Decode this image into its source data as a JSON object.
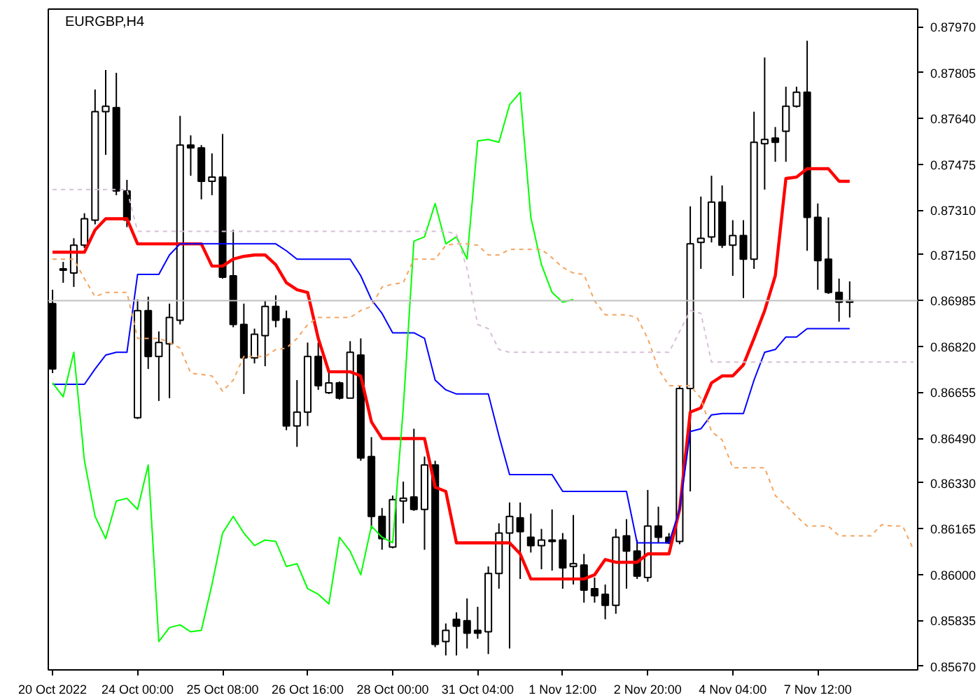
{
  "chart_data": {
    "type": "candlestick",
    "title": "EURGBP,H4",
    "categories": [
      "20 Oct 2022",
      null,
      null,
      null,
      null,
      null,
      null,
      null,
      "24 Oct 00:00",
      null,
      null,
      null,
      null,
      null,
      null,
      null,
      "25 Oct 08:00",
      null,
      null,
      null,
      null,
      null,
      null,
      null,
      "26 Oct 16:00",
      null,
      null,
      null,
      null,
      null,
      null,
      null,
      "28 Oct 00:00",
      null,
      null,
      null,
      null,
      null,
      null,
      null,
      "31 Oct 04:00",
      null,
      null,
      null,
      null,
      null,
      null,
      null,
      "1 Nov 12:00",
      null,
      null,
      null,
      null,
      null,
      null,
      null,
      "2 Nov 20:00",
      null,
      null,
      null,
      null,
      null,
      null,
      null,
      "4 Nov 04:00",
      null,
      null,
      null,
      null,
      null,
      null,
      null,
      "7 Nov 12:00",
      null,
      null,
      null,
      null,
      null,
      null,
      null,
      null,
      null
    ],
    "ohlc": [
      [
        0.86974,
        0.87024,
        0.86724,
        0.86739
      ],
      [
        0.87099,
        0.87124,
        0.87049,
        0.87094
      ],
      [
        0.87084,
        0.87209,
        0.87034,
        0.87184
      ],
      [
        0.87184,
        0.87299,
        0.87174,
        0.87279
      ],
      [
        0.87274,
        0.87744,
        0.87259,
        0.87664
      ],
      [
        0.87664,
        0.87814,
        0.87509,
        0.87684
      ],
      [
        0.87679,
        0.87804,
        0.87364,
        0.87379
      ],
      [
        0.87379,
        0.87419,
        0.87249,
        0.87274
      ],
      [
        0.86564,
        0.86989,
        0.86559,
        0.86949
      ],
      [
        0.86949,
        0.86999,
        0.86739,
        0.86784
      ],
      [
        0.86784,
        0.86874,
        0.86624,
        0.86834
      ],
      [
        0.86829,
        0.86974,
        0.86634,
        0.86924
      ],
      [
        0.86914,
        0.87649,
        0.86899,
        0.87544
      ],
      [
        0.87544,
        0.87579,
        0.87434,
        0.87534
      ],
      [
        0.87534,
        0.87544,
        0.87349,
        0.87414
      ],
      [
        0.87414,
        0.87514,
        0.87364,
        0.87429
      ],
      [
        0.87429,
        0.87584,
        0.87064,
        0.87069
      ],
      [
        0.87074,
        0.87239,
        0.86889,
        0.86899
      ],
      [
        0.86899,
        0.86974,
        0.86649,
        0.86779
      ],
      [
        0.86779,
        0.86884,
        0.86759,
        0.86864
      ],
      [
        0.86859,
        0.86984,
        0.86749,
        0.86964
      ],
      [
        0.86964,
        0.87004,
        0.86889,
        0.86914
      ],
      [
        0.86919,
        0.86949,
        0.86519,
        0.86534
      ],
      [
        0.86534,
        0.86699,
        0.86459,
        0.86584
      ],
      [
        0.86584,
        0.86834,
        0.86534,
        0.86784
      ],
      [
        0.86784,
        0.86834,
        0.86664,
        0.86679
      ],
      [
        0.86654,
        0.86729,
        0.86649,
        0.86689
      ],
      [
        0.86689,
        0.86694,
        0.86629,
        0.86634
      ],
      [
        0.86634,
        0.86839,
        0.86634,
        0.86799
      ],
      [
        0.86789,
        0.86849,
        0.86409,
        0.86419
      ],
      [
        0.86424,
        0.86494,
        0.86164,
        0.86209
      ],
      [
        0.86209,
        0.86239,
        0.86089,
        0.86129
      ],
      [
        0.86099,
        0.86284,
        0.86094,
        0.86269
      ],
      [
        0.86264,
        0.86334,
        0.86184,
        0.86274
      ],
      [
        0.86279,
        0.86524,
        0.86229,
        0.86234
      ],
      [
        0.86234,
        0.86424,
        0.86089,
        0.86394
      ],
      [
        0.86394,
        0.86409,
        0.85739,
        0.85749
      ],
      [
        0.85759,
        0.85824,
        0.85709,
        0.85799
      ],
      [
        0.85839,
        0.85864,
        0.85709,
        0.85814
      ],
      [
        0.85834,
        0.85914,
        0.85734,
        0.85789
      ],
      [
        0.85799,
        0.85884,
        0.85769,
        0.85789
      ],
      [
        0.85794,
        0.86029,
        0.85714,
        0.86004
      ],
      [
        0.86004,
        0.86184,
        0.85949,
        0.86149
      ],
      [
        0.86149,
        0.86259,
        0.85734,
        0.86209
      ],
      [
        0.86204,
        0.86259,
        0.85984,
        0.86154
      ],
      [
        0.86134,
        0.86219,
        0.86079,
        0.86104
      ],
      [
        0.86104,
        0.86164,
        0.86019,
        0.86124
      ],
      [
        0.86124,
        0.86234,
        0.86014,
        0.86119
      ],
      [
        0.86124,
        0.86149,
        0.85949,
        0.86024
      ],
      [
        0.86029,
        0.86214,
        0.85964,
        0.86039
      ],
      [
        0.86034,
        0.86074,
        0.85899,
        0.85944
      ],
      [
        0.85949,
        0.85989,
        0.85899,
        0.85924
      ],
      [
        0.85929,
        0.85964,
        0.85839,
        0.85889
      ],
      [
        0.85889,
        0.86164,
        0.85859,
        0.86134
      ],
      [
        0.86139,
        0.86199,
        0.85949,
        0.86084
      ],
      [
        0.86084,
        0.86124,
        0.85984,
        0.85994
      ],
      [
        0.85989,
        0.86304,
        0.85974,
        0.86174
      ],
      [
        0.86174,
        0.86244,
        0.86114,
        0.86134
      ],
      [
        0.86134,
        0.86149,
        0.86109,
        0.86114
      ],
      [
        0.86119,
        0.86679,
        0.86109,
        0.86669
      ],
      [
        0.86669,
        0.87324,
        0.86299,
        0.87189
      ],
      [
        0.87194,
        0.87359,
        0.87099,
        0.87209
      ],
      [
        0.87214,
        0.87434,
        0.87194,
        0.87339
      ],
      [
        0.87339,
        0.87399,
        0.87174,
        0.87184
      ],
      [
        0.87184,
        0.87274,
        0.87074,
        0.87219
      ],
      [
        0.87219,
        0.87274,
        0.86994,
        0.87134
      ],
      [
        0.87134,
        0.87664,
        0.87099,
        0.87554
      ],
      [
        0.87549,
        0.87859,
        0.87384,
        0.87564
      ],
      [
        0.87569,
        0.87609,
        0.87484,
        0.87554
      ],
      [
        0.87594,
        0.87754,
        0.87484,
        0.87684
      ],
      [
        0.87684,
        0.87754,
        0.87679,
        0.87734
      ],
      [
        0.87734,
        0.87919,
        0.87164,
        0.87284
      ],
      [
        0.87284,
        0.87334,
        0.87024,
        0.87129
      ],
      [
        0.87134,
        0.87284,
        0.87009,
        0.87014
      ],
      [
        0.87014,
        0.87064,
        0.86909,
        0.86979
      ],
      [
        0.86979,
        0.87054,
        0.86924,
        0.86985
      ],
      null,
      null,
      null,
      null,
      null,
      null
    ],
    "series": [
      {
        "type": "line",
        "color": "#ff0000",
        "values": [
          0.87159,
          0.87159,
          0.87159,
          0.87159,
          0.87239,
          0.87279,
          0.87279,
          0.87279,
          0.87189,
          0.87189,
          0.87189,
          0.87189,
          0.87189,
          0.87189,
          0.87189,
          0.87109,
          0.87109,
          0.87134,
          0.87144,
          0.87149,
          0.87149,
          0.87114,
          0.87049,
          0.87024,
          0.87014,
          0.86849,
          0.86729,
          0.86729,
          0.86729,
          0.86714,
          0.86549,
          0.86489,
          0.86489,
          0.86489,
          0.86489,
          0.86489,
          0.86314,
          0.86299,
          0.86114,
          0.86114,
          0.86114,
          0.86114,
          0.86114,
          0.86114,
          0.86074,
          0.85984,
          0.85984,
          0.85984,
          0.85984,
          0.85984,
          0.85984,
          0.85999,
          0.86054,
          0.86044,
          0.86044,
          0.86044,
          0.86074,
          0.86074,
          0.86074,
          0.86234,
          0.86584,
          0.86599,
          0.86689,
          0.86714,
          0.86714,
          0.86754,
          0.86849,
          0.86949,
          0.87074,
          0.87424,
          0.87429,
          0.87459,
          0.87459,
          0.87459,
          0.87414,
          0.87414,
          null,
          null,
          null,
          null,
          null,
          null
        ]
      },
      {
        "type": "line",
        "color": "#0000ff",
        "values": [
          0.86684,
          0.86684,
          0.86684,
          0.86684,
          0.86739,
          0.86789,
          0.86799,
          0.86799,
          0.87079,
          0.87079,
          0.87079,
          0.87149,
          0.87189,
          0.87189,
          0.87189,
          0.87189,
          0.87189,
          0.87189,
          0.87189,
          0.87189,
          0.87189,
          0.87189,
          0.87164,
          0.87134,
          0.87134,
          0.87134,
          0.87134,
          0.87134,
          0.87134,
          0.87074,
          0.86989,
          0.86939,
          0.86869,
          0.86869,
          0.86869,
          0.86849,
          0.86699,
          0.86664,
          0.86649,
          0.86649,
          0.86649,
          0.86649,
          0.86499,
          0.86359,
          0.86359,
          0.86359,
          0.86359,
          0.86359,
          0.86299,
          0.86299,
          0.86299,
          0.86299,
          0.86299,
          0.86299,
          0.86299,
          0.86114,
          0.86114,
          0.86114,
          0.86114,
          0.86234,
          0.86514,
          0.86524,
          0.86574,
          0.86579,
          0.86579,
          0.86579,
          0.86699,
          0.86799,
          0.86809,
          0.86854,
          0.86854,
          0.86884,
          0.86884,
          0.86884,
          0.86884,
          0.86884,
          null,
          null,
          null,
          null,
          null,
          null
        ]
      },
      {
        "type": "line",
        "color": "#00ff00",
        "values": [
          0.86689,
          0.86639,
          0.86799,
          0.86409,
          0.86209,
          0.86129,
          0.86264,
          0.86274,
          0.86234,
          0.86394,
          0.85759,
          0.85809,
          0.85819,
          0.85794,
          0.85799,
          0.85964,
          0.86149,
          0.86209,
          0.86149,
          0.86104,
          0.86124,
          0.86119,
          0.86029,
          0.86039,
          0.85949,
          0.85929,
          0.85894,
          0.86134,
          0.86084,
          0.85999,
          0.86174,
          0.86134,
          0.86114,
          0.86599,
          0.87199,
          0.87214,
          0.87334,
          0.87189,
          0.87214,
          0.87134,
          0.87559,
          0.87564,
          0.87554,
          0.87689,
          0.87734,
          0.87284,
          0.87114,
          0.87014,
          0.86979,
          0.86989,
          null,
          null,
          null,
          null,
          null,
          null,
          null,
          null,
          null,
          null,
          null,
          null,
          null,
          null,
          null,
          null,
          null,
          null,
          null,
          null,
          null,
          null,
          null,
          null,
          null,
          null,
          null,
          null,
          null,
          null,
          null,
          null
        ]
      },
      {
        "type": "line",
        "color": "#f4a460",
        "line_style": "dashed",
        "values": [
          0.87134,
          0.87134,
          0.87134,
          0.87064,
          0.86999,
          0.87014,
          0.87014,
          0.87014,
          0.86849,
          0.86849,
          0.86849,
          0.86834,
          0.86814,
          0.86724,
          0.86719,
          0.86714,
          0.86659,
          0.86699,
          0.86784,
          0.86784,
          0.86784,
          0.86809,
          0.86814,
          0.86849,
          0.86899,
          0.86924,
          0.86924,
          0.86924,
          0.86924,
          0.86949,
          0.86964,
          0.87034,
          0.87044,
          0.87049,
          0.87134,
          0.87134,
          0.87134,
          0.87184,
          0.87189,
          0.87189,
          0.87184,
          0.87149,
          0.87149,
          0.87169,
          0.87169,
          0.87169,
          0.87169,
          0.87139,
          0.87104,
          0.87084,
          0.87079,
          0.86984,
          0.86934,
          0.86934,
          0.86934,
          0.86924,
          0.86849,
          0.86739,
          0.86679,
          0.86679,
          0.86679,
          0.86634,
          0.86514,
          0.86484,
          0.86384,
          0.86384,
          0.86384,
          0.86384,
          0.86284,
          0.86249,
          0.86209,
          0.86174,
          0.86174,
          0.86174,
          0.86139,
          0.86139,
          0.86139,
          0.86139,
          0.86179,
          0.86174,
          0.86174,
          0.86089
        ]
      },
      {
        "type": "line",
        "color": "#d8bfd8",
        "line_style": "dashed",
        "values": [
          0.87384,
          0.87384,
          0.87384,
          0.87384,
          0.87384,
          0.87384,
          0.87384,
          0.87384,
          0.87234,
          0.87234,
          0.87234,
          0.87234,
          0.87234,
          0.87234,
          0.87234,
          0.87234,
          0.87234,
          0.87234,
          0.87234,
          0.87234,
          0.87234,
          0.87234,
          0.87234,
          0.87234,
          0.87234,
          0.87234,
          0.87234,
          0.87234,
          0.87234,
          0.87234,
          0.87234,
          0.87234,
          0.87234,
          0.87234,
          0.87234,
          0.87234,
          0.87234,
          0.87234,
          0.87224,
          0.87099,
          0.86899,
          0.86884,
          0.86809,
          0.86799,
          0.86799,
          0.86799,
          0.86799,
          0.86799,
          0.86799,
          0.86799,
          0.86799,
          0.86799,
          0.86799,
          0.86799,
          0.86799,
          0.86799,
          0.86799,
          0.86799,
          0.86799,
          0.86874,
          0.86949,
          0.86939,
          0.86764,
          0.86764,
          0.86764,
          0.86764,
          0.86764,
          0.86764,
          0.86764,
          0.86764,
          0.86764,
          0.86764,
          0.86764,
          0.86764,
          0.86764,
          0.86764,
          0.86764,
          0.86764,
          0.86764,
          0.86764,
          0.86764,
          0.86764
        ]
      }
    ],
    "ylim": [
      0.85657,
      0.88033
    ],
    "yticks": [
      {
        "value": 0.8797,
        "label": "0.87970"
      },
      {
        "value": 0.87805,
        "label": "0.87805"
      },
      {
        "value": 0.8764,
        "label": "0.87640"
      },
      {
        "value": 0.87475,
        "label": "0.87475"
      },
      {
        "value": 0.8731,
        "label": "0.87310"
      },
      {
        "value": 0.8715,
        "label": "0.87150"
      },
      {
        "value": 0.8682,
        "label": "0.86820"
      },
      {
        "value": 0.86655,
        "label": "0.86655"
      },
      {
        "value": 0.8649,
        "label": "0.86490"
      },
      {
        "value": 0.8633,
        "label": "0.86330"
      },
      {
        "value": 0.86165,
        "label": "0.86165"
      },
      {
        "value": 0.86,
        "label": "0.86000"
      },
      {
        "value": 0.85835,
        "label": "0.85835"
      },
      {
        "value": 0.8567,
        "label": "0.85670"
      }
    ],
    "ref_lines": [
      {
        "axis": "y",
        "value": 0.86985,
        "label": "0.86985",
        "color": "#c0c0c0"
      }
    ],
    "grid": false
  }
}
